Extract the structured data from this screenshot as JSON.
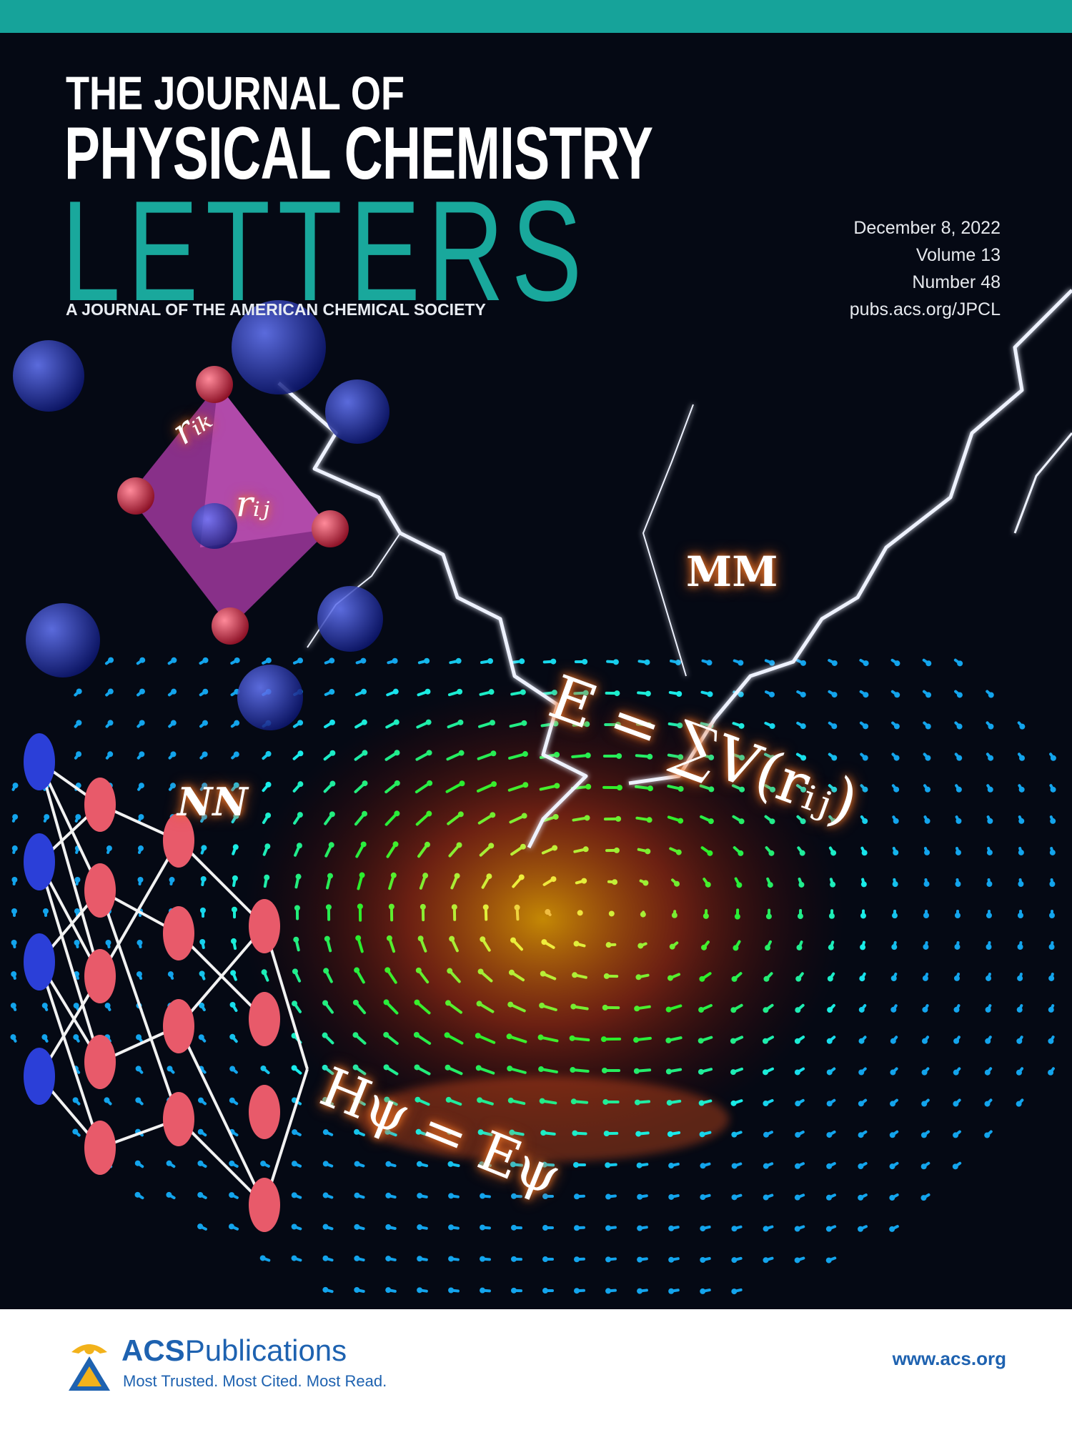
{
  "journal": {
    "title_line1": "THE JOURNAL OF",
    "title_line2": "PHYSICAL CHEMISTRY",
    "title_line3": "LETTERS",
    "subtitle": "A JOURNAL OF THE AMERICAN CHEMICAL SOCIETY"
  },
  "issue": {
    "date": "December 8, 2022",
    "volume": "Volume 13",
    "number": "Number 48",
    "url": "pubs.acs.org/JPCL"
  },
  "artwork": {
    "label_mm": "MM",
    "label_nn": "NN",
    "equation_mm": "E = ∑V(rᵢⱼ)",
    "equation_qm": "Hψ = Eψ",
    "label_rik": "rᵢₖ",
    "label_rij": "rᵢⱼ"
  },
  "footer": {
    "publisher_strong": "ACS",
    "publisher_rest": "Publications",
    "tagline": "Most Trusted. Most Cited. Most Read.",
    "website": "www.acs.org"
  },
  "colors": {
    "teal": "#16a39a",
    "acs_blue": "#1e62b0",
    "background": "#050914"
  }
}
